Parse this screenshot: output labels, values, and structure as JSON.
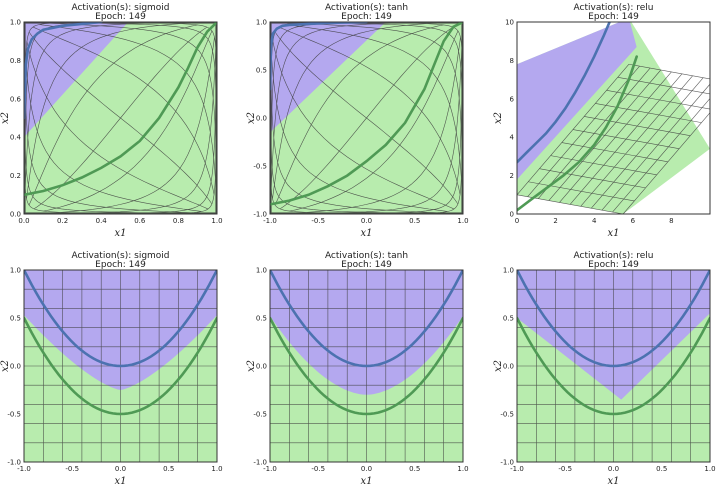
{
  "chart_data": [
    {
      "type": "area",
      "title": "Activation(s): sigmoid",
      "subtitle": "Epoch: 149",
      "xlabel": "x1",
      "ylabel": "x2",
      "xlim": [
        0,
        1
      ],
      "ylim": [
        0,
        1
      ],
      "xticks": [
        0.0,
        0.2,
        0.4,
        0.6,
        0.8,
        1.0
      ],
      "yticks": [
        0.0,
        0.2,
        0.4,
        0.6,
        0.8,
        1.0
      ],
      "tick_decimals": 1,
      "grid_warp": "sigmoid",
      "region_purple_polygon": [
        [
          0,
          0.4
        ],
        [
          0.54,
          1
        ],
        [
          0,
          1
        ]
      ],
      "series": [
        {
          "name": "class-blue-curve",
          "color": "#4c72b0",
          "x": [
            0.0,
            0.01,
            0.02,
            0.04,
            0.07,
            0.1,
            0.15,
            0.2,
            0.3,
            0.4
          ],
          "y": [
            0.5,
            0.78,
            0.86,
            0.91,
            0.94,
            0.96,
            0.97,
            0.98,
            0.99,
            1.0
          ]
        },
        {
          "name": "class-green-curve",
          "color": "#4f9a55",
          "x": [
            0.0,
            0.1,
            0.2,
            0.3,
            0.4,
            0.5,
            0.6,
            0.7,
            0.8,
            0.85,
            0.9,
            0.95,
            1.0
          ],
          "y": [
            0.1,
            0.12,
            0.15,
            0.19,
            0.24,
            0.3,
            0.38,
            0.5,
            0.66,
            0.76,
            0.87,
            0.95,
            1.0
          ]
        }
      ]
    },
    {
      "type": "area",
      "title": "Activation(s): tanh",
      "subtitle": "Epoch: 149",
      "xlabel": "x1",
      "ylabel": "x2",
      "xlim": [
        -1,
        1
      ],
      "ylim": [
        -1,
        1
      ],
      "xticks": [
        -1.0,
        -0.5,
        0.0,
        0.5,
        1.0
      ],
      "yticks": [
        -1.0,
        -0.5,
        0.0,
        0.5,
        1.0
      ],
      "tick_decimals": 1,
      "grid_warp": "tanh",
      "region_purple_polygon": [
        [
          -1,
          -0.15
        ],
        [
          0.2,
          1
        ],
        [
          -1,
          1
        ]
      ],
      "series": [
        {
          "name": "class-blue-curve",
          "color": "#4c72b0",
          "x": [
            -1.0,
            -0.99,
            -0.97,
            -0.93,
            -0.87,
            -0.8,
            -0.6,
            -0.4,
            -0.2,
            0.0
          ],
          "y": [
            0.3,
            0.75,
            0.88,
            0.93,
            0.96,
            0.97,
            0.98,
            0.99,
            0.995,
            1.0
          ]
        },
        {
          "name": "class-green-curve",
          "color": "#4f9a55",
          "x": [
            -1.0,
            -0.8,
            -0.6,
            -0.4,
            -0.2,
            0.0,
            0.2,
            0.4,
            0.6,
            0.7,
            0.8,
            0.9,
            1.0
          ],
          "y": [
            -0.9,
            -0.86,
            -0.8,
            -0.71,
            -0.6,
            -0.45,
            -0.28,
            -0.05,
            0.3,
            0.55,
            0.8,
            0.95,
            1.0
          ]
        }
      ]
    },
    {
      "type": "area",
      "title": "Activation(s): relu",
      "subtitle": "Epoch: 149",
      "xlabel": "x1",
      "ylabel": "x2",
      "xlim": [
        0,
        10
      ],
      "ylim": [
        0,
        10
      ],
      "xticks": [
        0,
        2,
        4,
        6,
        8
      ],
      "yticks": [
        0,
        2,
        4,
        6,
        8,
        10
      ],
      "tick_decimals": 0,
      "grid_warp": "rotated",
      "quad_green": [
        [
          0,
          1.0
        ],
        [
          0,
          7.8
        ],
        [
          5.8,
          10.2
        ],
        [
          10,
          3.4
        ],
        [
          5.5,
          0
        ]
      ],
      "quad_purple": [
        [
          0,
          1.8
        ],
        [
          0,
          7.8
        ],
        [
          5.8,
          10.2
        ],
        [
          6.2,
          8.7
        ]
      ],
      "series": [
        {
          "name": "class-blue-curve",
          "color": "#4c72b0",
          "x": [
            0.0,
            0.5,
            1.0,
            1.5,
            2.0,
            2.5,
            3.0,
            3.5,
            4.0,
            4.5,
            4.8
          ],
          "y": [
            2.7,
            3.2,
            3.7,
            4.2,
            4.8,
            5.5,
            6.3,
            7.2,
            8.2,
            9.3,
            10.0
          ]
        },
        {
          "name": "class-green-curve",
          "color": "#4f9a55",
          "x": [
            0.0,
            0.8,
            1.6,
            2.4,
            3.2,
            4.0,
            4.6,
            5.2,
            5.8,
            6.2
          ],
          "y": [
            0.2,
            0.8,
            1.4,
            2.0,
            2.7,
            3.6,
            4.5,
            5.6,
            7.0,
            8.2
          ]
        }
      ]
    },
    {
      "type": "area",
      "title": "Activation(s): sigmoid",
      "subtitle": "Epoch: 149",
      "xlabel": "x1",
      "ylabel": "x2",
      "xlim": [
        -1,
        1
      ],
      "ylim": [
        -1,
        1
      ],
      "xticks": [
        -1.0,
        -0.5,
        0.0,
        0.5,
        1.0
      ],
      "yticks": [
        -1.0,
        -0.5,
        0.0,
        0.5,
        1.0
      ],
      "tick_decimals": 1,
      "grid_warp": "none",
      "boundary": {
        "kind": "smooth",
        "k": 0.78,
        "c": 0.25,
        "p": 1.4
      },
      "series": [
        {
          "name": "class-blue-curve",
          "color": "#4c72b0",
          "parabola_offset": 0.0
        },
        {
          "name": "class-green-curve",
          "color": "#4f9a55",
          "parabola_offset": -0.5
        }
      ]
    },
    {
      "type": "area",
      "title": "Activation(s): tanh",
      "subtitle": "Epoch: 149",
      "xlabel": "x1",
      "ylabel": "x2",
      "xlim": [
        -1,
        1
      ],
      "ylim": [
        -1,
        1
      ],
      "xticks": [
        -1.0,
        -0.5,
        0.0,
        0.5,
        1.0
      ],
      "yticks": [
        -1.0,
        -0.5,
        0.0,
        0.5,
        1.0
      ],
      "tick_decimals": 1,
      "grid_warp": "none",
      "boundary": {
        "kind": "smooth",
        "k": 0.82,
        "c": 0.3,
        "p": 1.8
      },
      "series": [
        {
          "name": "class-blue-curve",
          "color": "#4c72b0",
          "parabola_offset": 0.0
        },
        {
          "name": "class-green-curve",
          "color": "#4f9a55",
          "parabola_offset": -0.5
        }
      ]
    },
    {
      "type": "area",
      "title": "Activation(s): relu",
      "subtitle": "Epoch: 149",
      "xlabel": "x1",
      "ylabel": "x2",
      "xlim": [
        -1,
        1
      ],
      "ylim": [
        -1,
        1
      ],
      "xticks": [
        -1.0,
        -0.5,
        0.0,
        0.5,
        1.0
      ],
      "yticks": [
        -1.0,
        -0.5,
        0.0,
        0.5,
        1.0
      ],
      "tick_decimals": 1,
      "grid_warp": "none",
      "boundary": {
        "kind": "piecewise",
        "vertex": [
          0.08,
          -0.35
        ],
        "left": [
          -1,
          0.5
        ],
        "right": [
          1,
          0.55
        ]
      },
      "series": [
        {
          "name": "class-blue-curve",
          "color": "#4c72b0",
          "parabola_offset": 0.0
        },
        {
          "name": "class-green-curve",
          "color": "#4f9a55",
          "parabola_offset": -0.5
        }
      ]
    }
  ],
  "colors": {
    "purple_region": "#b4a8ef",
    "green_region": "#b8ecae",
    "grid": "#3c3c3c"
  }
}
